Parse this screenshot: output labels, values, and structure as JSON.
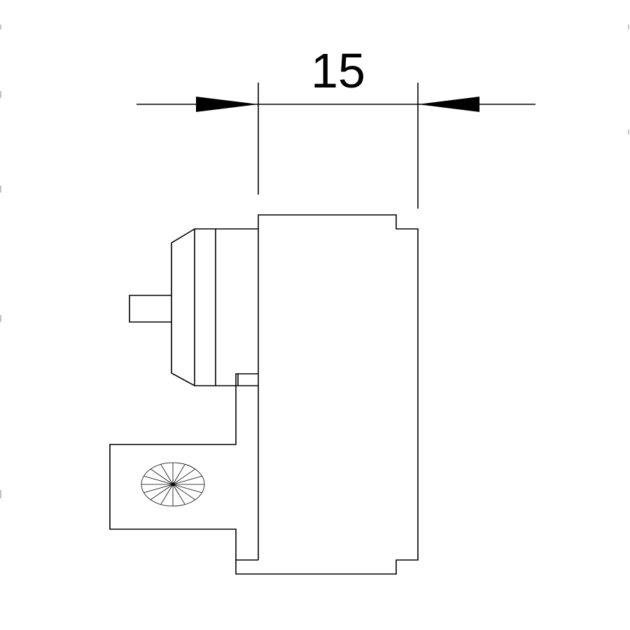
{
  "diagram": {
    "dimension": {
      "label": "15"
    },
    "colors": {
      "stroke": "#000000",
      "background": "#ffffff"
    },
    "icons": {
      "screw_head": "screw-head-icon"
    }
  }
}
